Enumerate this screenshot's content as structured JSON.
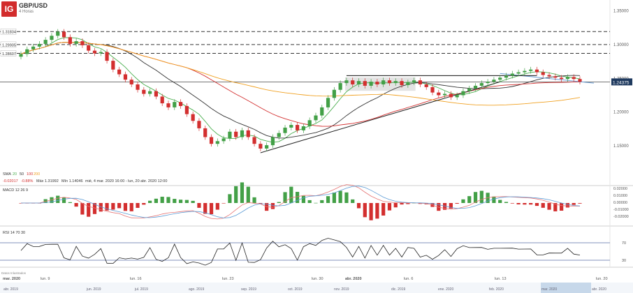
{
  "header": {
    "logo": "IG",
    "symbol": "GBP/USD",
    "timeframe": "4 Horas"
  },
  "price_axis": {
    "ticks": [
      "1.35000",
      "1.30000",
      "1.25000",
      "1.20000",
      "1.15000"
    ],
    "tick_values": [
      1.35,
      1.3,
      1.25,
      1.2,
      1.15
    ],
    "current_label": "1.24375",
    "current_value": 1.24375
  },
  "levels": [
    {
      "label": "1.31834",
      "value": 1.3183
    },
    {
      "label": "1.29905",
      "value": 1.299
    },
    {
      "label": "1.28607",
      "value": 1.286
    }
  ],
  "sma_legend": {
    "title": "SMA",
    "periods": [
      "20",
      "50",
      "100",
      "200"
    ],
    "colors": [
      "#4caf50",
      "#333333",
      "#d32f2f",
      "#f0a020"
    ]
  },
  "stats": {
    "change": "-0.02017",
    "change_pct": "-0.88%",
    "max": "Máx 1.31992",
    "min": "Mín 1.14046",
    "range": "mié, 4 mar. 2020 16:00 - lun, 20 abr. 2020 12:00"
  },
  "macd": {
    "title": "MACD",
    "params": [
      "12",
      "26",
      "9"
    ],
    "ticks": [
      "0.02000",
      "0.01000",
      "0.00000",
      "-0.01000",
      "-0.02000"
    ]
  },
  "rsi": {
    "title": "RSI",
    "params": [
      "14",
      "70",
      "30"
    ],
    "ticks": [
      "70",
      "30"
    ]
  },
  "x_axis": {
    "labels": [
      "mar. 2020",
      "lun. 9",
      "lun. 16",
      "lun. 23",
      "lun. 30",
      "abr. 2020",
      "lun. 6",
      "lun. 13",
      "lun. 20"
    ]
  },
  "navigator": {
    "labels": [
      "abr. 2019",
      "jun. 2019",
      "jul. 2019",
      "ago. 2019",
      "sep. 2019",
      "oct. 2019",
      "nov. 2019",
      "dic. 2019",
      "ene. 2020",
      "feb. 2020",
      "mar. 2020",
      "abr. 2020"
    ]
  },
  "footer": "Datos Inlustrados",
  "colors": {
    "up": "#43a047",
    "down": "#d32f2f",
    "macd_line": "#e57373",
    "signal_line": "#5c9bd5",
    "rsi_line": "#222222"
  },
  "chart_data": {
    "type": "candlestick",
    "title": "GBP/USD",
    "close": [
      1.285,
      1.292,
      1.296,
      1.3,
      1.306,
      1.312,
      1.318,
      1.31,
      1.3,
      1.304,
      1.298,
      1.29,
      1.286,
      1.288,
      1.275,
      1.262,
      1.255,
      1.247,
      1.24,
      1.232,
      1.226,
      1.23,
      1.222,
      1.212,
      1.206,
      1.214,
      1.208,
      1.196,
      1.186,
      1.175,
      1.162,
      1.152,
      1.156,
      1.16,
      1.17,
      1.162,
      1.172,
      1.162,
      1.152,
      1.145,
      1.15,
      1.162,
      1.168,
      1.176,
      1.18,
      1.172,
      1.178,
      1.187,
      1.194,
      1.206,
      1.22,
      1.232,
      1.242,
      1.246,
      1.24,
      1.245,
      1.238,
      1.244,
      1.24,
      1.246,
      1.242,
      1.245,
      1.239,
      1.243,
      1.246,
      1.24,
      1.236,
      1.228,
      1.224,
      1.226,
      1.221,
      1.224,
      1.23,
      1.234,
      1.238,
      1.242,
      1.244,
      1.247,
      1.25,
      1.253,
      1.256,
      1.258,
      1.26,
      1.262,
      1.258,
      1.254,
      1.252,
      1.25,
      1.248,
      1.251,
      1.248,
      1.244
    ],
    "sma20_end": 1.2437,
    "trendlines": [
      {
        "from_close_index": 39,
        "to_close_index": 78,
        "type": "support"
      },
      {
        "from_close_index": 78,
        "to_close_index": 91,
        "type": "resistance"
      }
    ]
  }
}
